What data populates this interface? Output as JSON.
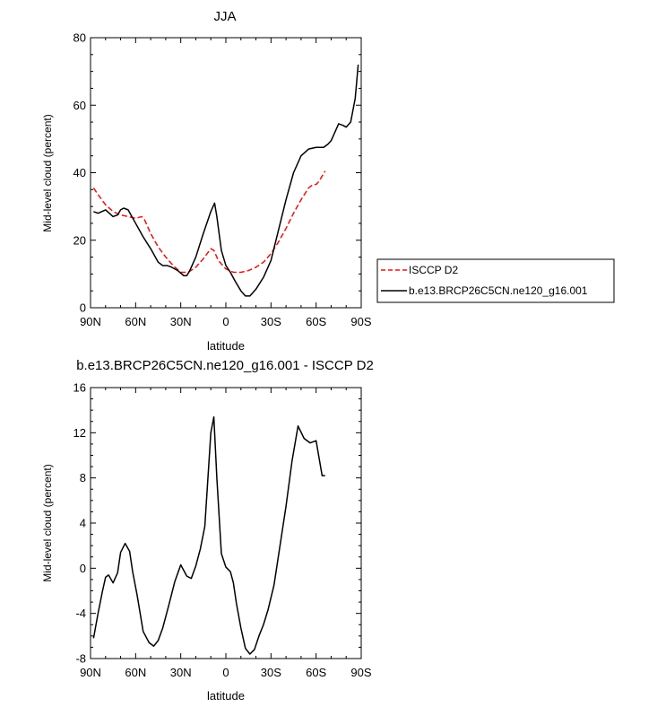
{
  "colors": {
    "obs": "#ee1111",
    "model": "#000000",
    "axis": "#000000"
  },
  "chart_data": [
    {
      "type": "line",
      "title": "JJA",
      "xlabel": "latitude",
      "ylabel": "Mid-level cloud (percent)",
      "xlim": [
        90,
        -90
      ],
      "ylim": [
        0,
        80
      ],
      "xticks": [
        90,
        60,
        30,
        0,
        -30,
        -60,
        -90
      ],
      "xtick_labels": [
        "90N",
        "60N",
        "30N",
        "0",
        "30S",
        "60S",
        "90S"
      ],
      "yticks": [
        0,
        20,
        40,
        60,
        80
      ],
      "ytick_labels": [
        "0",
        "20",
        "40",
        "60",
        "80"
      ],
      "legend": {
        "position": "right",
        "entries": [
          "ISCCP D2",
          "b.e13.BRCP26C5CN.ne120_g16.001"
        ]
      },
      "series": [
        {
          "name": "ISCCP D2",
          "style": "dashed",
          "x": [
            88,
            85,
            80,
            75,
            70,
            65,
            60,
            56,
            54,
            50,
            45,
            40,
            35,
            30,
            25,
            20,
            15,
            10,
            8,
            5,
            0,
            -5,
            -10,
            -15,
            -20,
            -25,
            -30,
            -35,
            -40,
            -45,
            -50,
            -55,
            -58,
            -60,
            -62,
            -64,
            -66
          ],
          "y": [
            35.5,
            33.5,
            30.5,
            28.5,
            27.5,
            27,
            26.5,
            27,
            26,
            22,
            18,
            15,
            12.5,
            10.5,
            10.5,
            12,
            14.5,
            17.5,
            17,
            14,
            11.5,
            10.5,
            10.5,
            11,
            12,
            13.5,
            16,
            19.5,
            23.5,
            28,
            32,
            35.5,
            36.5,
            36.5,
            37.5,
            39,
            40.5
          ]
        },
        {
          "name": "b.e13.BRCP26C5CN.ne120_g16.001",
          "style": "solid",
          "x": [
            88,
            85,
            80,
            75,
            72,
            70,
            68,
            65,
            60,
            55,
            50,
            45,
            42,
            39,
            36,
            32,
            28,
            26,
            24,
            20,
            15,
            10,
            7.5,
            6,
            3,
            0,
            -3,
            -6,
            -10,
            -13,
            -16,
            -20,
            -25,
            -30,
            -35,
            -40,
            -45,
            -50,
            -55,
            -60,
            -65,
            -68,
            -70,
            -75,
            -78,
            -80,
            -83,
            -86,
            -88
          ],
          "y": [
            28.5,
            28,
            29,
            27,
            27.5,
            29,
            29.5,
            29,
            25,
            21,
            17.5,
            13.5,
            12.5,
            12.5,
            12,
            11,
            9.5,
            9.5,
            11,
            15,
            22,
            28.5,
            31,
            27,
            17,
            12.5,
            10.5,
            8,
            5,
            3.5,
            3.5,
            5.5,
            9,
            14,
            23,
            32,
            40,
            45,
            47,
            47.5,
            47.5,
            48.5,
            49.5,
            54.5,
            54,
            53.5,
            55,
            62,
            72
          ]
        }
      ]
    },
    {
      "type": "line",
      "title": "b.e13.BRCP26C5CN.ne120_g16.001 - ISCCP D2",
      "xlabel": "latitude",
      "ylabel": "Mid-level cloud (percent)",
      "xlim": [
        90,
        -90
      ],
      "ylim": [
        -8,
        16
      ],
      "xticks": [
        90,
        60,
        30,
        0,
        -30,
        -60,
        -90
      ],
      "xtick_labels": [
        "90N",
        "60N",
        "30N",
        "0",
        "30S",
        "60S",
        "90S"
      ],
      "yticks": [
        -8,
        -4,
        0,
        4,
        8,
        12,
        16
      ],
      "ytick_labels": [
        "-8",
        "-4",
        "0",
        "4",
        "8",
        "12",
        "16"
      ],
      "series": [
        {
          "name": "b.e13.BRCP26C5CN.ne120_g16.001 - ISCCP D2",
          "style": "solid",
          "x": [
            88,
            85,
            82,
            80,
            78,
            75,
            72,
            70,
            67,
            64,
            62,
            59,
            57,
            55,
            51,
            48,
            45,
            42,
            38,
            34,
            30,
            26,
            23,
            20,
            17,
            14,
            10,
            8,
            6,
            3,
            0,
            -3,
            -5,
            -7,
            -10,
            -13,
            -16,
            -19,
            -22,
            -25,
            -28,
            -32,
            -36,
            -40,
            -44,
            -48,
            -52,
            -56,
            -60,
            -64,
            -66
          ],
          "y": [
            -6.2,
            -4,
            -2,
            -0.8,
            -0.6,
            -1.3,
            -0.4,
            1.4,
            2.2,
            1.5,
            -0.3,
            -2.4,
            -4,
            -5.6,
            -6.6,
            -6.9,
            -6.4,
            -5.3,
            -3.3,
            -1.2,
            0.3,
            -0.7,
            -0.9,
            0.2,
            1.7,
            3.7,
            12,
            13.4,
            8,
            1.3,
            0.1,
            -0.3,
            -1.3,
            -3.1,
            -5.3,
            -7.1,
            -7.6,
            -7.2,
            -6,
            -5,
            -3.7,
            -1.5,
            2,
            5.5,
            9.5,
            12.6,
            11.5,
            11.1,
            11.3,
            8.2,
            8.2
          ]
        }
      ]
    }
  ]
}
